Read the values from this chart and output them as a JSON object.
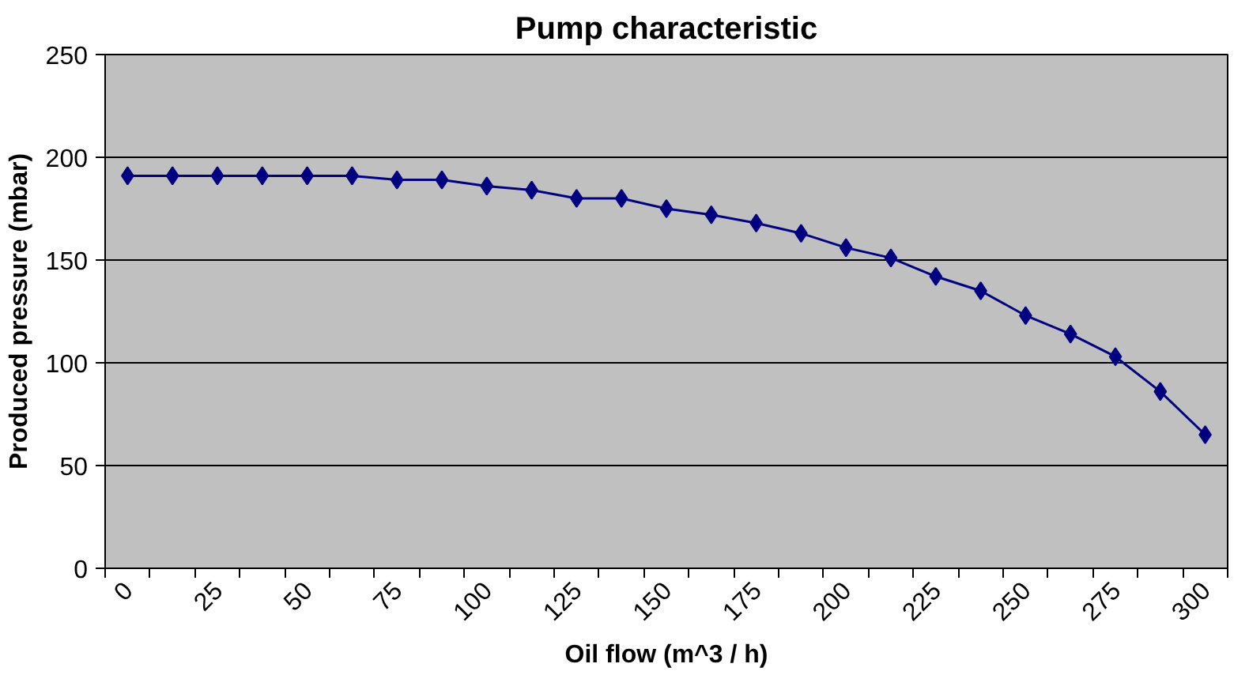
{
  "chart_data": {
    "type": "line",
    "title": "Pump characteristic",
    "xlabel": "Oil flow (m^3 / h)",
    "ylabel": "Produced pressure (mbar)",
    "categories": [
      "0",
      null,
      "25",
      null,
      "50",
      null,
      "75",
      null,
      "100",
      null,
      "125",
      null,
      "150",
      null,
      "175",
      null,
      "200",
      null,
      "225",
      null,
      "250",
      null,
      "275",
      null,
      "300"
    ],
    "series": [
      {
        "color": "#000080",
        "values": [
          191,
          191,
          191,
          191,
          191,
          191,
          189,
          189,
          186,
          184,
          180,
          180,
          175,
          172,
          168,
          163,
          156,
          151,
          142,
          135,
          123,
          114,
          103,
          86,
          65
        ]
      }
    ],
    "ylim": [
      0,
      250
    ],
    "yticks": [
      0,
      50,
      100,
      150,
      200,
      250
    ],
    "grid": "y",
    "marker": "diamond",
    "line_style": "solid"
  }
}
